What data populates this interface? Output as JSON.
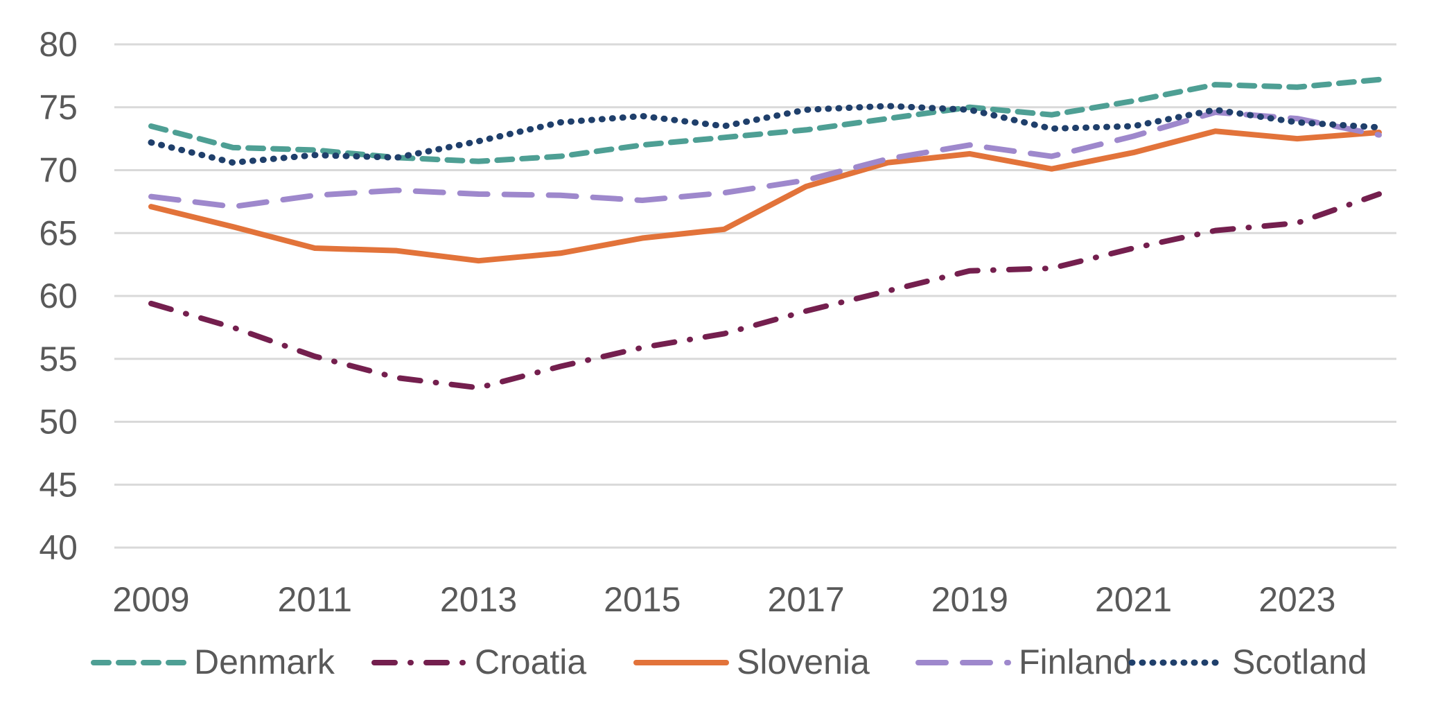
{
  "chart_data": {
    "type": "line",
    "title": "",
    "xlabel": "",
    "ylabel": "",
    "ylim": [
      40,
      80
    ],
    "yticks": [
      "40",
      "45",
      "50",
      "55",
      "60",
      "65",
      "70",
      "75",
      "80"
    ],
    "xticks": [
      "2009",
      "2011",
      "2013",
      "2015",
      "2017",
      "2019",
      "2021",
      "2023"
    ],
    "x": [
      2009,
      2010,
      2011,
      2012,
      2013,
      2014,
      2015,
      2016,
      2017,
      2018,
      2019,
      2020,
      2021,
      2022,
      2023,
      2024
    ],
    "grid": "horizontal",
    "legend": "bottom",
    "series": [
      {
        "name": "Denmark",
        "color": "#4E9F94",
        "dash": "dash",
        "values": [
          73.5,
          71.8,
          71.6,
          71.0,
          70.7,
          71.1,
          72.0,
          72.6,
          73.2,
          74.1,
          75.0,
          74.4,
          75.5,
          76.8,
          76.6,
          77.2
        ]
      },
      {
        "name": "Croatia",
        "color": "#741F4E",
        "dash": "dashdot",
        "values": [
          59.4,
          57.5,
          55.2,
          53.5,
          52.7,
          54.4,
          55.9,
          57.0,
          58.8,
          60.4,
          62.0,
          62.2,
          63.8,
          65.2,
          65.8,
          68.1
        ]
      },
      {
        "name": "Slovenia",
        "color": "#E2733A",
        "dash": "solid",
        "values": [
          67.1,
          65.5,
          63.8,
          63.6,
          62.8,
          63.4,
          64.6,
          65.3,
          68.7,
          70.6,
          71.3,
          70.1,
          71.4,
          73.1,
          72.5,
          73.0
        ]
      },
      {
        "name": "Finland",
        "color": "#9E88CC",
        "dash": "longdash",
        "values": [
          67.9,
          67.1,
          68.0,
          68.4,
          68.1,
          68.0,
          67.6,
          68.2,
          69.2,
          70.9,
          72.0,
          71.1,
          72.7,
          74.6,
          74.1,
          72.8
        ]
      },
      {
        "name": "Scotland",
        "color": "#1F3F6B",
        "dash": "dot",
        "values": [
          72.2,
          70.6,
          71.2,
          71.0,
          72.3,
          73.8,
          74.3,
          73.5,
          74.8,
          75.1,
          74.8,
          73.3,
          73.5,
          74.8,
          73.8,
          73.4
        ]
      }
    ]
  }
}
